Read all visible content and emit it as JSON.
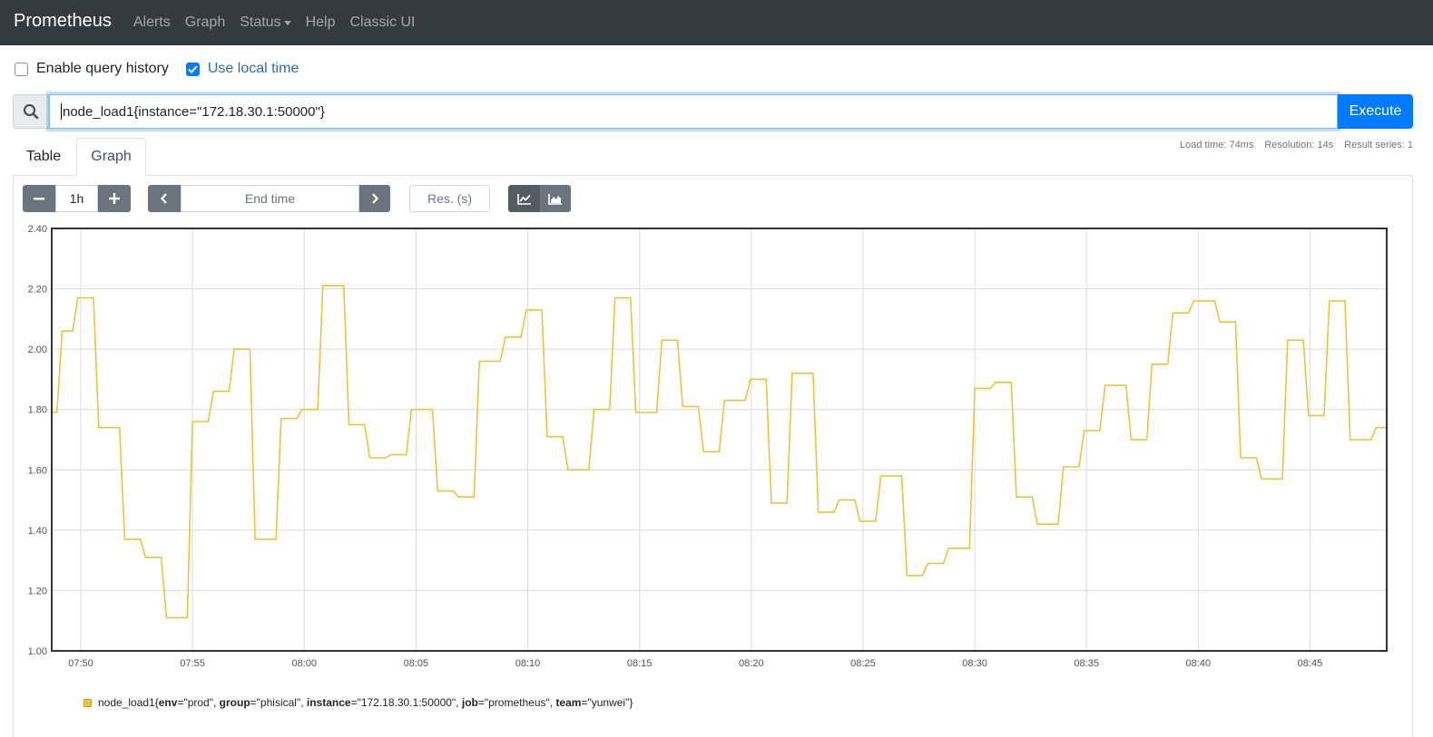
{
  "navbar": {
    "brand": "Prometheus",
    "links": [
      "Alerts",
      "Graph",
      "Status",
      "Help",
      "Classic UI"
    ]
  },
  "options": {
    "history_label": "Enable query history",
    "history_checked": false,
    "local_time_label": "Use local time",
    "local_time_checked": true
  },
  "query": {
    "expression": "node_load1{instance=\"172.18.30.1:50000\"}",
    "execute_label": "Execute",
    "search_icon": "search-icon"
  },
  "tabs": {
    "table": "Table",
    "graph": "Graph",
    "active": "Graph"
  },
  "stats": {
    "load_time": "Load time: 74ms",
    "resolution": "Resolution: 14s",
    "result_series": "Result series: 1"
  },
  "controls": {
    "range": "1h",
    "end_time_placeholder": "End time",
    "resolution_placeholder": "Res. (s)",
    "icons": [
      "minus-icon",
      "plus-icon",
      "chevron-left-icon",
      "chevron-right-icon",
      "line-chart-icon",
      "area-chart-icon"
    ],
    "active_mode": "line"
  },
  "colors": {
    "series": "#edc240",
    "accent": "#007bff",
    "navbar": "#343a40"
  },
  "chart_data": {
    "type": "line",
    "title": "",
    "xlabel": "",
    "ylabel": "",
    "ylim": [
      1.0,
      2.4
    ],
    "yticks": [
      "1.00",
      "1.20",
      "1.40",
      "1.60",
      "1.80",
      "2.00",
      "2.20",
      "2.40"
    ],
    "xtick_labels": [
      "07:50",
      "07:55",
      "08:00",
      "08:05",
      "08:10",
      "08:15",
      "08:20",
      "08:25",
      "08:30",
      "08:35",
      "08:40",
      "08:45"
    ],
    "grid": true,
    "legend_position": "bottom-left",
    "series": [
      {
        "legend": {
          "metric": "node_load1",
          "labels": [
            {
              "key": "env",
              "value": "prod"
            },
            {
              "key": "group",
              "value": "phisical"
            },
            {
              "key": "instance",
              "value": "172.18.30.1:50000"
            },
            {
              "key": "job",
              "value": "prometheus"
            },
            {
              "key": "team",
              "value": "yunwei"
            }
          ]
        },
        "points": [
          [
            "07:48:42",
            1.79
          ],
          [
            "07:48:56",
            1.79
          ],
          [
            "07:49:10",
            2.06
          ],
          [
            "07:49:38",
            2.06
          ],
          [
            "07:49:52",
            2.17
          ],
          [
            "07:50:34",
            2.17
          ],
          [
            "07:50:48",
            1.74
          ],
          [
            "07:51:44",
            1.74
          ],
          [
            "07:51:58",
            1.37
          ],
          [
            "07:52:40",
            1.37
          ],
          [
            "07:52:54",
            1.31
          ],
          [
            "07:53:36",
            1.31
          ],
          [
            "07:53:50",
            1.11
          ],
          [
            "07:54:46",
            1.11
          ],
          [
            "07:55:00",
            1.76
          ],
          [
            "07:55:42",
            1.76
          ],
          [
            "07:55:56",
            1.86
          ],
          [
            "07:56:38",
            1.86
          ],
          [
            "07:56:52",
            2.0
          ],
          [
            "07:57:34",
            2.0
          ],
          [
            "07:57:48",
            1.37
          ],
          [
            "07:58:44",
            1.37
          ],
          [
            "07:58:58",
            1.77
          ],
          [
            "07:59:40",
            1.77
          ],
          [
            "07:59:54",
            1.8
          ],
          [
            "08:00:36",
            1.8
          ],
          [
            "08:00:50",
            2.21
          ],
          [
            "08:01:46",
            2.21
          ],
          [
            "08:02:00",
            1.75
          ],
          [
            "08:02:42",
            1.75
          ],
          [
            "08:02:56",
            1.64
          ],
          [
            "08:03:38",
            1.64
          ],
          [
            "08:03:52",
            1.65
          ],
          [
            "08:04:34",
            1.65
          ],
          [
            "08:04:48",
            1.8
          ],
          [
            "08:05:44",
            1.8
          ],
          [
            "08:05:58",
            1.53
          ],
          [
            "08:06:40",
            1.53
          ],
          [
            "08:06:54",
            1.51
          ],
          [
            "08:07:36",
            1.51
          ],
          [
            "08:07:50",
            1.96
          ],
          [
            "08:08:46",
            1.96
          ],
          [
            "08:09:00",
            2.04
          ],
          [
            "08:09:42",
            2.04
          ],
          [
            "08:09:56",
            2.13
          ],
          [
            "08:10:38",
            2.13
          ],
          [
            "08:10:52",
            1.71
          ],
          [
            "08:11:34",
            1.71
          ],
          [
            "08:11:48",
            1.6
          ],
          [
            "08:12:44",
            1.6
          ],
          [
            "08:12:58",
            1.8
          ],
          [
            "08:13:40",
            1.8
          ],
          [
            "08:13:54",
            2.17
          ],
          [
            "08:14:36",
            2.17
          ],
          [
            "08:14:50",
            1.79
          ],
          [
            "08:15:46",
            1.79
          ],
          [
            "08:16:00",
            2.03
          ],
          [
            "08:16:42",
            2.03
          ],
          [
            "08:16:56",
            1.81
          ],
          [
            "08:17:38",
            1.81
          ],
          [
            "08:17:52",
            1.66
          ],
          [
            "08:18:34",
            1.66
          ],
          [
            "08:18:48",
            1.83
          ],
          [
            "08:19:44",
            1.83
          ],
          [
            "08:19:58",
            1.9
          ],
          [
            "08:20:40",
            1.9
          ],
          [
            "08:20:54",
            1.49
          ],
          [
            "08:21:36",
            1.49
          ],
          [
            "08:21:50",
            1.92
          ],
          [
            "08:22:46",
            1.92
          ],
          [
            "08:23:00",
            1.46
          ],
          [
            "08:23:42",
            1.46
          ],
          [
            "08:23:56",
            1.5
          ],
          [
            "08:24:38",
            1.5
          ],
          [
            "08:24:52",
            1.43
          ],
          [
            "08:25:34",
            1.43
          ],
          [
            "08:25:48",
            1.58
          ],
          [
            "08:26:44",
            1.58
          ],
          [
            "08:26:58",
            1.25
          ],
          [
            "08:27:40",
            1.25
          ],
          [
            "08:27:54",
            1.29
          ],
          [
            "08:28:36",
            1.29
          ],
          [
            "08:28:50",
            1.34
          ],
          [
            "08:29:46",
            1.34
          ],
          [
            "08:30:00",
            1.87
          ],
          [
            "08:30:42",
            1.87
          ],
          [
            "08:30:56",
            1.89
          ],
          [
            "08:31:38",
            1.89
          ],
          [
            "08:31:52",
            1.51
          ],
          [
            "08:32:34",
            1.51
          ],
          [
            "08:32:48",
            1.42
          ],
          [
            "08:33:44",
            1.42
          ],
          [
            "08:33:58",
            1.61
          ],
          [
            "08:34:40",
            1.61
          ],
          [
            "08:34:54",
            1.73
          ],
          [
            "08:35:36",
            1.73
          ],
          [
            "08:35:50",
            1.88
          ],
          [
            "08:36:46",
            1.88
          ],
          [
            "08:37:00",
            1.7
          ],
          [
            "08:37:42",
            1.7
          ],
          [
            "08:37:56",
            1.95
          ],
          [
            "08:38:38",
            1.95
          ],
          [
            "08:38:52",
            2.12
          ],
          [
            "08:39:34",
            2.12
          ],
          [
            "08:39:48",
            2.16
          ],
          [
            "08:40:44",
            2.16
          ],
          [
            "08:40:58",
            2.09
          ],
          [
            "08:41:40",
            2.09
          ],
          [
            "08:41:54",
            1.64
          ],
          [
            "08:42:36",
            1.64
          ],
          [
            "08:42:50",
            1.57
          ],
          [
            "08:43:46",
            1.57
          ],
          [
            "08:44:00",
            2.03
          ],
          [
            "08:44:42",
            2.03
          ],
          [
            "08:44:56",
            1.78
          ],
          [
            "08:45:38",
            1.78
          ],
          [
            "08:45:52",
            2.16
          ],
          [
            "08:46:34",
            2.16
          ],
          [
            "08:46:48",
            1.7
          ],
          [
            "08:47:44",
            1.7
          ],
          [
            "08:47:58",
            1.74
          ],
          [
            "08:48:26",
            1.74
          ]
        ]
      }
    ]
  }
}
